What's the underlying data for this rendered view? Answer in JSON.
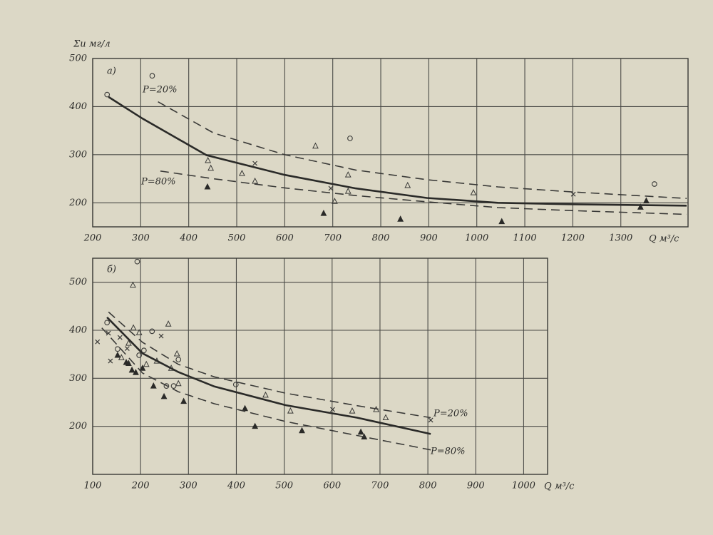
{
  "chart_data": [
    {
      "type": "scatter",
      "title": "а)",
      "y_label": "Σи мг/л",
      "x_label": "Q м³/с",
      "annotations": [
        "P=20%",
        "P=80%"
      ],
      "xlim": [
        200,
        1440
      ],
      "ylim": [
        150,
        500
      ],
      "xticks": [
        200,
        300,
        400,
        500,
        600,
        700,
        800,
        900,
        1000,
        1100,
        1200,
        1300
      ],
      "yticks": [
        200,
        300,
        400,
        500
      ],
      "grid": true,
      "series": [
        {
          "marker": "circle",
          "color": "#3a3a38",
          "x": [
            230,
            324,
            736,
            1370
          ],
          "values": [
            425,
            464,
            334,
            239
          ]
        },
        {
          "marker": "triangle",
          "color": "#3a3a38",
          "x": [
            440,
            446,
            511,
            538,
            664,
            732,
            732,
            704,
            856,
            993
          ],
          "values": [
            288,
            272,
            261,
            245,
            318,
            258,
            224,
            203,
            236,
            221
          ]
        },
        {
          "marker": "filled-triangle",
          "color": "#2a2a28",
          "x": [
            439,
            681,
            841,
            1052,
            1341,
            1353
          ],
          "values": [
            233,
            178,
            166,
            161,
            191,
            204
          ]
        },
        {
          "marker": "cross",
          "color": "#3a3a38",
          "x": [
            538,
            696,
            1201
          ],
          "values": [
            282,
            230,
            218
          ]
        },
        {
          "marker": "solid-line",
          "color": "#2a2a28",
          "x": [
            233,
            304,
            437,
            600,
            748,
            896,
            1044,
            1193,
            1437
          ],
          "values": [
            420,
            375,
            299,
            258,
            230,
            210,
            200,
            197,
            194
          ]
        },
        {
          "marker": "dashed-line",
          "color": "#3a3a38",
          "x": [
            336,
            452,
            600,
            748,
            896,
            1044,
            1193,
            1437
          ],
          "values": [
            410,
            345,
            300,
            268,
            248,
            233,
            223,
            209
          ]
        },
        {
          "marker": "dashed-line",
          "color": "#3a3a38",
          "x": [
            341,
            452,
            600,
            748,
            896,
            1044,
            1193,
            1437
          ],
          "values": [
            266,
            250,
            231,
            215,
            202,
            190,
            184,
            176
          ]
        }
      ]
    },
    {
      "type": "scatter",
      "title": "б)",
      "x_label": "Q м³/с",
      "annotations": [
        "P=20%",
        "P=80%"
      ],
      "xlim": [
        100,
        1050
      ],
      "ylim": [
        100,
        550
      ],
      "xticks": [
        100,
        200,
        300,
        400,
        500,
        600,
        700,
        800,
        900,
        1000
      ],
      "yticks": [
        200,
        300,
        400,
        500
      ],
      "grid": true,
      "series": [
        {
          "marker": "circle",
          "color": "#3a3a38",
          "x": [
            130,
            193,
            152,
            197,
            207,
            224,
            279,
            269,
            254,
            399
          ],
          "values": [
            416,
            543,
            361,
            348,
            358,
            398,
            339,
            284,
            284,
            287
          ]
        },
        {
          "marker": "triangle",
          "color": "#3a3a38",
          "x": [
            184,
            185,
            197,
            258,
            175,
            212,
            234,
            264,
            276,
            279,
            461,
            513,
            642,
            692,
            712,
            160
          ],
          "values": [
            494,
            405,
            395,
            413,
            373,
            329,
            336,
            321,
            351,
            289,
            265,
            232,
            232,
            235,
            218,
            343
          ]
        },
        {
          "marker": "filled-triangle",
          "color": "#2a2a28",
          "x": [
            152,
            170,
            182,
            190,
            204,
            227,
            249,
            290,
            418,
            439,
            537,
            660,
            667,
            175
          ],
          "values": [
            348,
            333,
            317,
            312,
            321,
            284,
            262,
            252,
            237,
            200,
            191,
            188,
            178,
            331
          ]
        },
        {
          "marker": "cross",
          "color": "#3a3a38",
          "x": [
            110,
            133,
            137,
            157,
            172,
            243,
            601,
            806
          ],
          "values": [
            376,
            394,
            336,
            385,
            362,
            388,
            235,
            213
          ]
        },
        {
          "marker": "solid-line",
          "color": "#2a2a28",
          "x": [
            130,
            204,
            279,
            354,
            503,
            652,
            806
          ],
          "values": [
            427,
            352,
            313,
            283,
            244,
            218,
            184
          ]
        },
        {
          "marker": "dashed-line",
          "color": "#3a3a38",
          "x": [
            133,
            204,
            279,
            354,
            503,
            652,
            806
          ],
          "values": [
            438,
            375,
            329,
            303,
            269,
            243,
            218
          ]
        },
        {
          "marker": "dashed-line",
          "color": "#3a3a38",
          "x": [
            119,
            204,
            279,
            354,
            503,
            652,
            806
          ],
          "values": [
            405,
            311,
            272,
            247,
            210,
            181,
            151
          ]
        }
      ]
    }
  ]
}
